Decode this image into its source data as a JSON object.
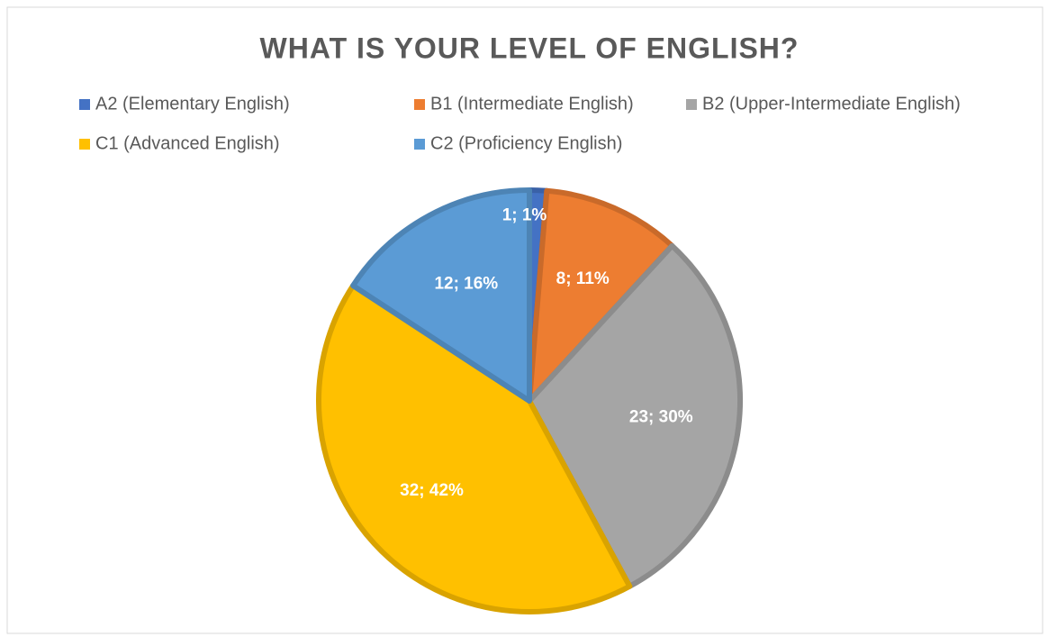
{
  "chart_data": {
    "type": "pie",
    "title": "WHAT IS YOUR LEVEL OF ENGLISH?",
    "categories": [
      "A2 (Elementary English)",
      "B1 (Intermediate English)",
      "B2 (Upper-Intermediate English)",
      "C1 (Advanced English)",
      "C2 (Proficiency English)"
    ],
    "values": [
      1,
      8,
      23,
      32,
      12
    ],
    "value_labels": [
      "1; 1%",
      "8; 11%",
      "23; 30%",
      "32; 42%",
      "12; 16%"
    ],
    "colors": [
      "#4472c4",
      "#ed7d31",
      "#a5a5a5",
      "#ffc000",
      "#5b9bd5"
    ],
    "legend": "top"
  }
}
